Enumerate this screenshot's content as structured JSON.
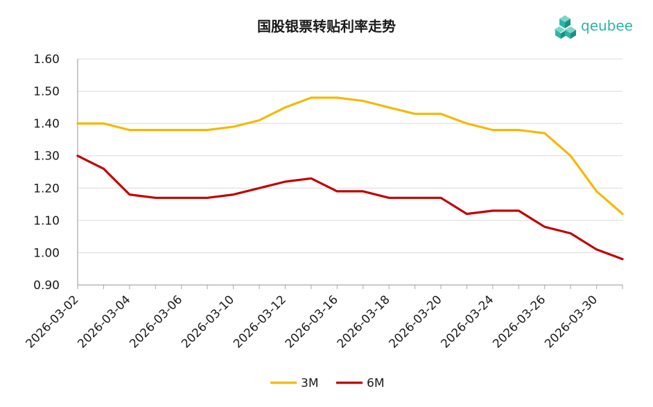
{
  "logo": {
    "text": "qeubee",
    "color": "#2bb5a6"
  },
  "chart_data": {
    "type": "line",
    "title": "国股银票转贴利率走势",
    "xlabel": "",
    "ylabel": "",
    "ylim": [
      0.9,
      1.6
    ],
    "yticks": [
      "0.90",
      "1.00",
      "1.10",
      "1.20",
      "1.30",
      "1.40",
      "1.50",
      "1.60"
    ],
    "x_tick_labels": [
      "2026-03-02",
      "2026-03-04",
      "2026-03-06",
      "2026-03-10",
      "2026-03-12",
      "2026-03-16",
      "2026-03-18",
      "2026-03-20",
      "2026-03-24",
      "2026-03-26",
      "2026-03-30"
    ],
    "grid": "horizontal",
    "legend_position": "bottom",
    "x": [
      "2026-03-02",
      "2026-03-03",
      "2026-03-04",
      "2026-03-05",
      "2026-03-06",
      "2026-03-09",
      "2026-03-10",
      "2026-03-11",
      "2026-03-12",
      "2026-03-13",
      "2026-03-16",
      "2026-03-17",
      "2026-03-18",
      "2026-03-19",
      "2026-03-20",
      "2026-03-23",
      "2026-03-24",
      "2026-03-25",
      "2026-03-26",
      "2026-03-27",
      "2026-03-30",
      "2026-03-31"
    ],
    "series": [
      {
        "name": "3M",
        "color": "#f5b800",
        "values": [
          1.4,
          1.4,
          1.38,
          1.38,
          1.38,
          1.38,
          1.39,
          1.41,
          1.45,
          1.48,
          1.48,
          1.47,
          1.45,
          1.43,
          1.43,
          1.4,
          1.38,
          1.38,
          1.37,
          1.3,
          1.19,
          1.12
        ]
      },
      {
        "name": "6M",
        "color": "#c00000",
        "values": [
          1.3,
          1.26,
          1.18,
          1.17,
          1.17,
          1.17,
          1.18,
          1.2,
          1.22,
          1.23,
          1.19,
          1.19,
          1.17,
          1.17,
          1.17,
          1.12,
          1.13,
          1.13,
          1.08,
          1.06,
          1.01,
          0.98
        ]
      }
    ]
  }
}
